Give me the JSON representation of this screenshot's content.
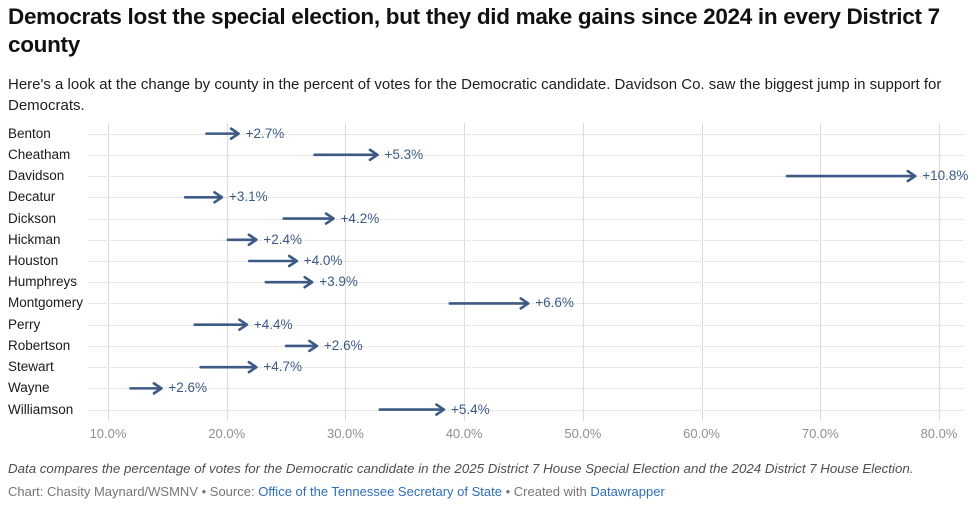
{
  "header": {
    "title": "Democrats lost the special election, but they did make gains since 2024 in every District 7 county",
    "subtitle": "Here's a look at the change by county in the percent of votes for the Democratic candidate. Davidson Co. saw the biggest jump in support for Democrats."
  },
  "colors": {
    "accent": "#3d5a87",
    "link": "#2e6fb7",
    "gridline": "#dcdcdc",
    "dotted_guide": "#d4d4d4",
    "tick_label": "#8f8f8f"
  },
  "chart_data": {
    "type": "arrow",
    "title": "Democrats lost the special election, but they did make gains since 2024 in every District 7 county",
    "xlabel": "",
    "ylabel": "",
    "xlim": [
      10,
      80
    ],
    "x_ticks": [
      "10.0%",
      "20.0%",
      "30.0%",
      "40.0%",
      "50.0%",
      "60.0%",
      "70.0%",
      "80.0%"
    ],
    "grid": "vertical-solid-and-row-dotted",
    "legend": false,
    "arrow_color": "#3d5a87",
    "categories": [
      "Benton",
      "Cheatham",
      "Davidson",
      "Decatur",
      "Dickson",
      "Hickman",
      "Houston",
      "Humphreys",
      "Montgomery",
      "Perry",
      "Robertson",
      "Stewart",
      "Wayne",
      "Williamson"
    ],
    "rows": [
      {
        "county": "Benton",
        "start": 18.3,
        "end": 21.0,
        "change": "+2.7%"
      },
      {
        "county": "Cheatham",
        "start": 27.4,
        "end": 32.7,
        "change": "+5.3%"
      },
      {
        "county": "Davidson",
        "start": 67.2,
        "end": 78.0,
        "change": "+10.8%"
      },
      {
        "county": "Decatur",
        "start": 16.5,
        "end": 19.6,
        "change": "+3.1%"
      },
      {
        "county": "Dickson",
        "start": 24.8,
        "end": 29.0,
        "change": "+4.2%"
      },
      {
        "county": "Hickman",
        "start": 20.1,
        "end": 22.5,
        "change": "+2.4%"
      },
      {
        "county": "Houston",
        "start": 21.9,
        "end": 25.9,
        "change": "+4.0%"
      },
      {
        "county": "Humphreys",
        "start": 23.3,
        "end": 27.2,
        "change": "+3.9%"
      },
      {
        "county": "Montgomery",
        "start": 38.8,
        "end": 45.4,
        "change": "+6.6%"
      },
      {
        "county": "Perry",
        "start": 17.3,
        "end": 21.7,
        "change": "+4.4%"
      },
      {
        "county": "Robertson",
        "start": 25.0,
        "end": 27.6,
        "change": "+2.6%"
      },
      {
        "county": "Stewart",
        "start": 17.8,
        "end": 22.5,
        "change": "+4.7%"
      },
      {
        "county": "Wayne",
        "start": 11.9,
        "end": 14.5,
        "change": "+2.6%"
      },
      {
        "county": "Williamson",
        "start": 32.9,
        "end": 38.3,
        "change": "+5.4%"
      }
    ]
  },
  "footer": {
    "note": "Data compares the percentage of votes for the Democratic candidate in the 2025 District 7 House Special Election and the 2024 District 7 House Election.",
    "byline": {
      "chart_label": "Chart: Chasity Maynard/WSMNV",
      "sep1": " • ",
      "source_prefix": "Source: ",
      "source_link": "Office of the Tennessee Secretary of State",
      "sep2": " • ",
      "created_prefix": "Created with ",
      "credit_link": "Datawrapper"
    }
  }
}
